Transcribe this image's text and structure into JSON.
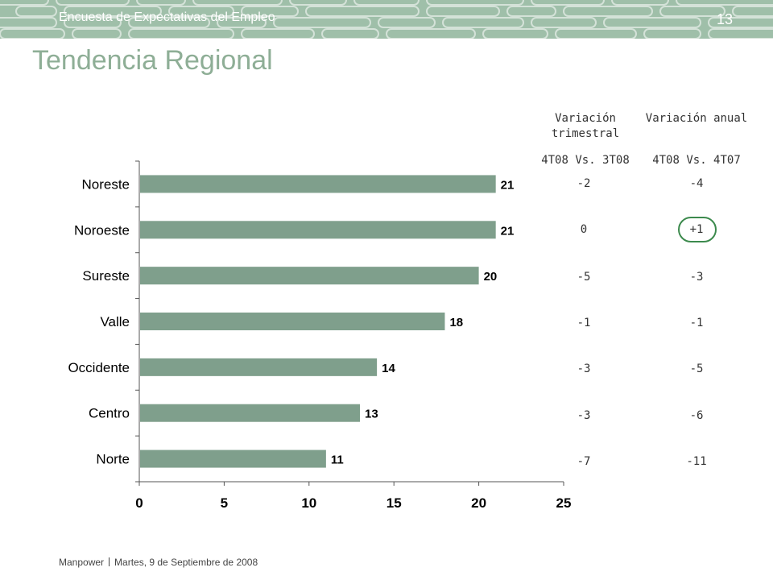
{
  "header": {
    "banner_title": "Encuesta de Expectativas del Empleo",
    "page_number": "13"
  },
  "slide": {
    "title": "Tendencia Regional"
  },
  "table": {
    "col1_header": "Variación trimestral",
    "col2_header": "Variación anual",
    "col1_sub": "4T08 Vs. 3T08",
    "col2_sub": "4T08 Vs. 4T07",
    "rows": [
      {
        "region": "Noreste",
        "trimestral": "-2",
        "anual": "-4"
      },
      {
        "region": "Noroeste",
        "trimestral": "0",
        "anual": "+1"
      },
      {
        "region": "Sureste",
        "trimestral": "-5",
        "anual": "-3"
      },
      {
        "region": "Valle",
        "trimestral": "-1",
        "anual": "-1"
      },
      {
        "region": "Occidente",
        "trimestral": "-3",
        "anual": "-5"
      },
      {
        "region": "Centro",
        "trimestral": "-3",
        "anual": "-6"
      },
      {
        "region": "Norte",
        "trimestral": "-7",
        "anual": "-11"
      }
    ],
    "highlighted_cell": "+1"
  },
  "chart_data": {
    "type": "bar",
    "orientation": "horizontal",
    "categories": [
      "Noreste",
      "Noroeste",
      "Sureste",
      "Valle",
      "Occidente",
      "Centro",
      "Norte"
    ],
    "values": [
      21,
      21,
      20,
      18,
      14,
      13,
      11
    ],
    "xlim": [
      0,
      25
    ],
    "xticks": [
      0,
      5,
      10,
      15,
      20,
      25
    ],
    "bar_color": "#7f9f8c",
    "title": "",
    "xlabel": "",
    "ylabel": ""
  },
  "footer": {
    "brand": "Manpower",
    "date": "Martes, 9 de Septiembre de 2008"
  },
  "colors": {
    "banner": "#9fbfa9",
    "title": "#8eae96",
    "highlight": "#3c8a4d"
  }
}
